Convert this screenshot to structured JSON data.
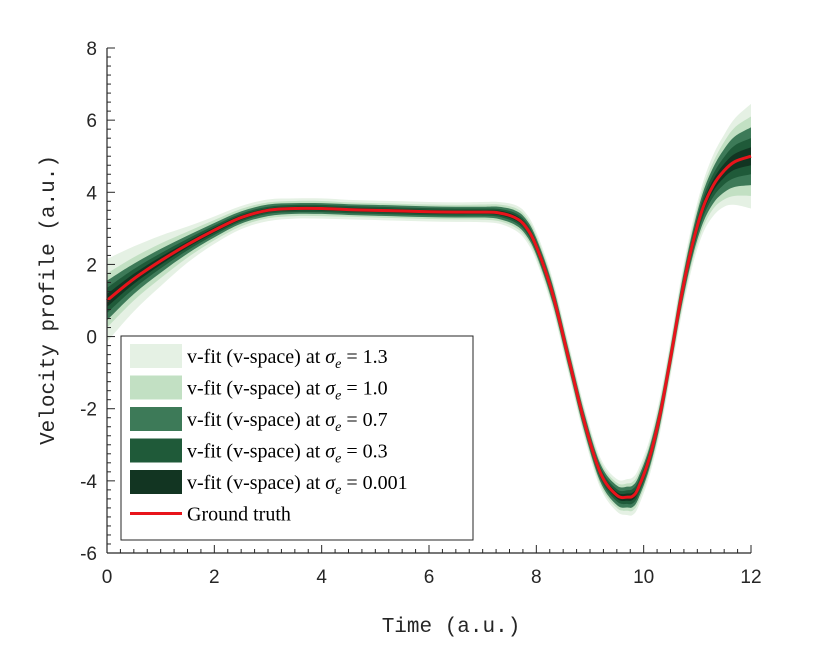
{
  "chart_data": {
    "type": "area",
    "xlabel": "Time (a.u.)",
    "ylabel": "Velocity profile (a.u.)",
    "xlim": [
      0,
      12
    ],
    "ylim": [
      -6,
      8
    ],
    "xticks": [
      0,
      2,
      4,
      6,
      8,
      10,
      12
    ],
    "yticks": [
      -6,
      -4,
      -2,
      0,
      2,
      4,
      6,
      8
    ],
    "xtick_labels": [
      "0",
      "2",
      "4",
      "6",
      "8",
      "10",
      "12"
    ],
    "ytick_labels": [
      "-6",
      "-4",
      "-2",
      "0",
      "2",
      "4",
      "6",
      "8"
    ],
    "minor_tick_step": 0.25,
    "ground_truth": {
      "name": "Ground truth",
      "color": "#e8141b",
      "x": [
        0,
        0.5,
        1,
        1.5,
        2,
        2.5,
        3,
        3.5,
        4,
        4.5,
        5,
        5.5,
        6,
        6.5,
        7,
        7.3,
        7.6,
        7.8,
        8,
        8.3,
        8.6,
        8.9,
        9.2,
        9.5,
        9.7,
        9.8,
        9.9,
        10.1,
        10.3,
        10.5,
        10.7,
        10.9,
        11.1,
        11.3,
        11.5,
        11.7,
        12
      ],
      "y": [
        1.0,
        1.6,
        2.1,
        2.55,
        2.95,
        3.3,
        3.5,
        3.55,
        3.55,
        3.52,
        3.5,
        3.48,
        3.46,
        3.45,
        3.45,
        3.43,
        3.3,
        3.05,
        2.5,
        1.2,
        -0.6,
        -2.4,
        -3.8,
        -4.4,
        -4.45,
        -4.42,
        -4.2,
        -3.4,
        -2.2,
        -0.6,
        1.1,
        2.5,
        3.55,
        4.2,
        4.6,
        4.85,
        5.0
      ]
    },
    "bands": [
      {
        "name": "v-fit (v-space) at σe = 1.3",
        "sigma": "1.3",
        "color": "#e5f1e4",
        "half_width": [
          1.15,
          0.9,
          0.7,
          0.5,
          0.38,
          0.32,
          0.3,
          0.28,
          0.28,
          0.27,
          0.27,
          0.27,
          0.27,
          0.27,
          0.28,
          0.3,
          0.35,
          0.38,
          0.4,
          0.42,
          0.42,
          0.42,
          0.42,
          0.45,
          0.5,
          0.52,
          0.52,
          0.5,
          0.5,
          0.5,
          0.55,
          0.6,
          0.7,
          0.85,
          1.0,
          1.2,
          1.45
        ]
      },
      {
        "name": "v-fit (v-space) at σe = 1.0",
        "sigma": "1.0",
        "color": "#c2e0c3",
        "half_width": [
          0.75,
          0.6,
          0.48,
          0.36,
          0.28,
          0.24,
          0.22,
          0.21,
          0.21,
          0.2,
          0.2,
          0.2,
          0.2,
          0.2,
          0.21,
          0.23,
          0.27,
          0.29,
          0.31,
          0.33,
          0.33,
          0.33,
          0.33,
          0.35,
          0.38,
          0.4,
          0.4,
          0.38,
          0.38,
          0.38,
          0.42,
          0.46,
          0.55,
          0.65,
          0.8,
          0.95,
          1.1
        ]
      },
      {
        "name": "v-fit (v-space) at σe = 0.7",
        "sigma": "0.7",
        "color": "#3d7a58",
        "half_width": [
          0.55,
          0.42,
          0.33,
          0.25,
          0.2,
          0.17,
          0.16,
          0.15,
          0.15,
          0.15,
          0.15,
          0.15,
          0.15,
          0.15,
          0.15,
          0.17,
          0.2,
          0.22,
          0.23,
          0.25,
          0.25,
          0.25,
          0.25,
          0.27,
          0.29,
          0.3,
          0.3,
          0.29,
          0.29,
          0.29,
          0.32,
          0.35,
          0.42,
          0.5,
          0.6,
          0.7,
          0.8
        ]
      },
      {
        "name": "v-fit (v-space) at σe = 0.3",
        "sigma": "0.3",
        "color": "#1f5a39",
        "half_width": [
          0.35,
          0.27,
          0.21,
          0.16,
          0.13,
          0.11,
          0.1,
          0.1,
          0.1,
          0.1,
          0.1,
          0.1,
          0.1,
          0.1,
          0.1,
          0.11,
          0.13,
          0.14,
          0.15,
          0.16,
          0.16,
          0.16,
          0.16,
          0.17,
          0.19,
          0.2,
          0.2,
          0.19,
          0.19,
          0.19,
          0.21,
          0.23,
          0.27,
          0.32,
          0.38,
          0.45,
          0.5
        ]
      },
      {
        "name": "v-fit (v-space) at σe = 0.001",
        "sigma": "0.001",
        "color": "#123522",
        "half_width": [
          0.18,
          0.14,
          0.11,
          0.08,
          0.07,
          0.06,
          0.05,
          0.05,
          0.05,
          0.05,
          0.05,
          0.05,
          0.05,
          0.05,
          0.05,
          0.06,
          0.07,
          0.07,
          0.08,
          0.08,
          0.08,
          0.08,
          0.08,
          0.09,
          0.1,
          0.1,
          0.1,
          0.1,
          0.1,
          0.1,
          0.11,
          0.12,
          0.14,
          0.16,
          0.19,
          0.22,
          0.25
        ]
      }
    ],
    "legend": {
      "placement": "bottom-left",
      "entries": [
        {
          "prefix": "v-fit (v-space) at ",
          "sigma_symbol": "σ",
          "sigma_sub": "e",
          "relation": " = ",
          "value": "1.3"
        },
        {
          "prefix": "v-fit (v-space) at ",
          "sigma_symbol": "σ",
          "sigma_sub": "e",
          "relation": " = ",
          "value": "1.0"
        },
        {
          "prefix": "v-fit (v-space) at ",
          "sigma_symbol": "σ",
          "sigma_sub": "e",
          "relation": " = ",
          "value": "0.7"
        },
        {
          "prefix": "v-fit (v-space) at ",
          "sigma_symbol": "σ",
          "sigma_sub": "e",
          "relation": " = ",
          "value": "0.3"
        },
        {
          "prefix": "v-fit (v-space) at ",
          "sigma_symbol": "σ",
          "sigma_sub": "e",
          "relation": " = ",
          "value": "0.001"
        },
        {
          "label": "Ground truth"
        }
      ]
    }
  }
}
